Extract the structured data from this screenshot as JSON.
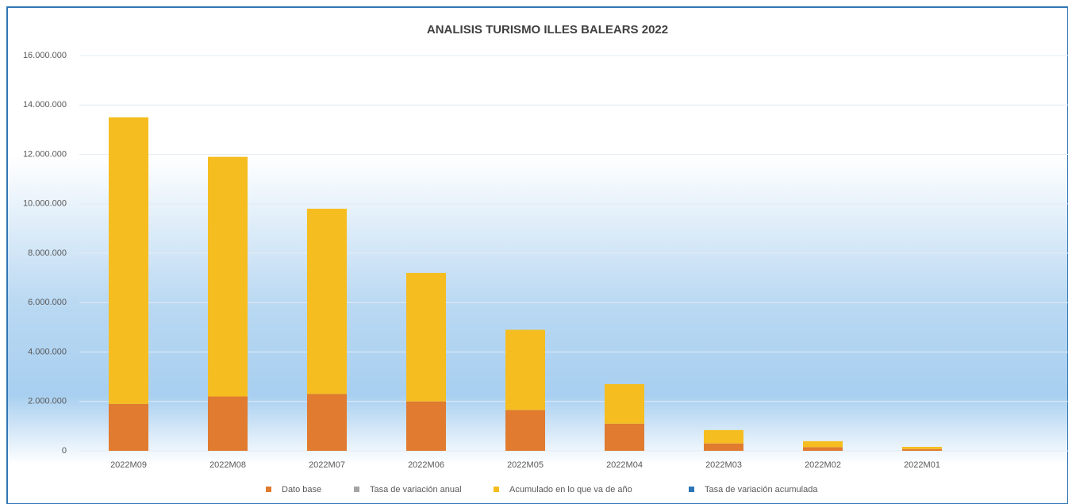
{
  "chart_data": {
    "type": "bar",
    "stacked": true,
    "title": "ANALISIS TURISMO ILLES BALEARS 2022",
    "categories": [
      "2022M09",
      "2022M08",
      "2022M07",
      "2022M06",
      "2022M05",
      "2022M04",
      "2022M03",
      "2022M02",
      "2022M01"
    ],
    "series": [
      {
        "name": "Dato base",
        "color": "#e07b30",
        "values": [
          1900000,
          2200000,
          2300000,
          2000000,
          1650000,
          1100000,
          300000,
          150000,
          70000
        ]
      },
      {
        "name": "Tasa de variación anual",
        "color": "#a5a5a5",
        "values": [
          null,
          null,
          null,
          null,
          null,
          null,
          null,
          null,
          null
        ]
      },
      {
        "name": "Acumulado en lo que va de año",
        "color": "#f5bd1f",
        "values": [
          11600000,
          9700000,
          7500000,
          5200000,
          3250000,
          1600000,
          540000,
          240000,
          90000
        ]
      },
      {
        "name": "Tasa de variación acumulada",
        "color": "#2e75b6",
        "values": [
          null,
          null,
          null,
          null,
          null,
          null,
          null,
          null,
          null
        ]
      }
    ],
    "ylim": [
      0,
      16000000
    ],
    "yticks": [
      0,
      {
        "value": 2000000,
        "label": "2.000.000"
      },
      {
        "value": 4000000,
        "label": "4.000.000"
      },
      {
        "value": 6000000,
        "label": "6.000.000"
      },
      {
        "value": 8000000,
        "label": "8.000.000"
      },
      {
        "value": 10000000,
        "label": "10.000.000"
      },
      {
        "value": 12000000,
        "label": "12.000.000"
      },
      {
        "value": 14000000,
        "label": "14.000.000"
      },
      {
        "value": 16000000,
        "label": "16.000.000"
      }
    ],
    "grid": true,
    "legend": "bottom"
  }
}
